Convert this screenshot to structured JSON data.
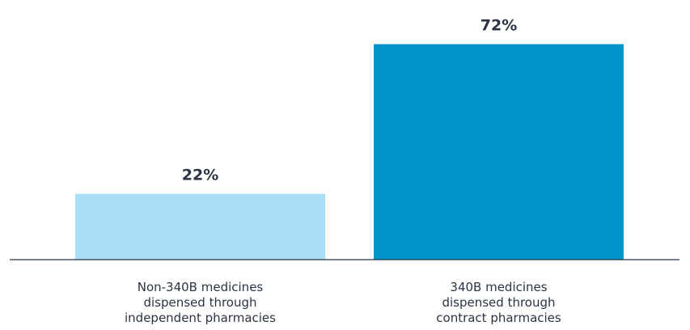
{
  "chart_data": {
    "type": "bar",
    "categories": [
      [
        "Non-340B medicines",
        "dispensed through",
        "independent pharmacies"
      ],
      [
        "340B medicines",
        "dispensed through",
        "contract pharmacies"
      ]
    ],
    "values": [
      22,
      72
    ],
    "value_labels": [
      "22%",
      "72%"
    ],
    "colors": [
      "#a8def7",
      "#0096cc"
    ],
    "ylim": [
      0,
      100
    ],
    "grid": false,
    "legend": "none",
    "title": "",
    "xlabel": "",
    "ylabel": ""
  }
}
